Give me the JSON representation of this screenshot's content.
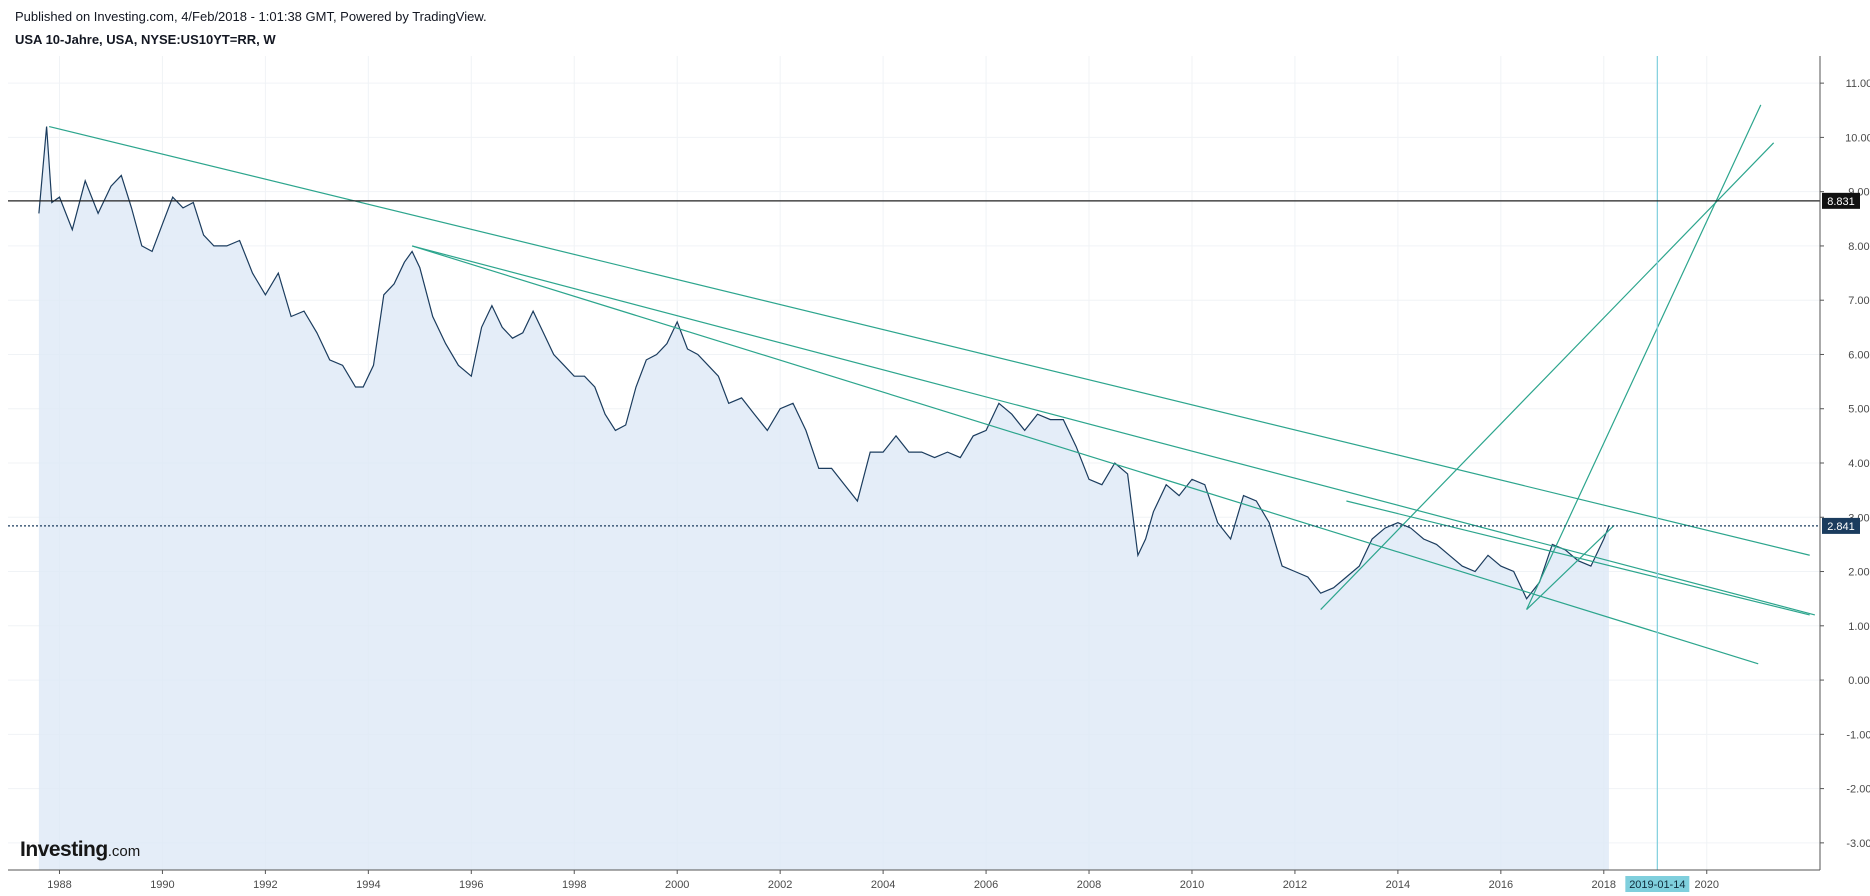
{
  "header": {
    "published": "Published on Investing.com, 4/Feb/2018 - 1:01:38 GMT, Powered by TradingView.",
    "symbol": "USA 10-Jahre, USA, NYSE:US10YT=RR, W"
  },
  "logo": {
    "brand": "Investing",
    "suffix": ".com"
  },
  "chart_data": {
    "type": "area",
    "title": "USA 10-Jahre, USA, NYSE:US10YT=RR, W",
    "x_ticks": [
      "1988",
      "1990",
      "1992",
      "1994",
      "1996",
      "1998",
      "2000",
      "2002",
      "2004",
      "2006",
      "2008",
      "2010",
      "2012",
      "2014",
      "2016",
      "2018",
      "2020"
    ],
    "y_ticks": [
      "11.000",
      "10.000",
      "9.000",
      "8.000",
      "7.000",
      "6.000",
      "5.000",
      "4.000",
      "3.000",
      "2.000",
      "1.000",
      "0.000",
      "-1.000",
      "-2.000",
      "-3.000"
    ],
    "ylim": [
      -3.5,
      11.5
    ],
    "xlim": [
      1987.0,
      2022.2
    ],
    "grid": true,
    "colors": {
      "line": "#1b3c5e",
      "fill": "#dde9f6",
      "trend": "#2ca58d",
      "crosshair": "#7fcfdd",
      "price_label": "#1b3c5e"
    },
    "series": [
      {
        "x": [
          1987.6,
          1987.75,
          1987.85,
          1988.0,
          1988.25,
          1988.5,
          1988.75,
          1989.0,
          1989.2,
          1989.4,
          1989.6,
          1989.8,
          1990.0,
          1990.2,
          1990.4,
          1990.6,
          1990.8,
          1991.0,
          1991.25,
          1991.5,
          1991.75,
          1992.0,
          1992.25,
          1992.5,
          1992.75,
          1993.0,
          1993.25,
          1993.5,
          1993.75,
          1993.9,
          1994.1,
          1994.3,
          1994.5,
          1994.7,
          1994.85,
          1995.0,
          1995.25,
          1995.5,
          1995.75,
          1996.0,
          1996.2,
          1996.4,
          1996.6,
          1996.8,
          1997.0,
          1997.2,
          1997.4,
          1997.6,
          1997.8,
          1998.0,
          1998.2,
          1998.4,
          1998.6,
          1998.8,
          1999.0,
          1999.2,
          1999.4,
          1999.6,
          1999.8,
          2000.0,
          2000.2,
          2000.4,
          2000.6,
          2000.8,
          2001.0,
          2001.25,
          2001.5,
          2001.75,
          2002.0,
          2002.25,
          2002.5,
          2002.75,
          2003.0,
          2003.25,
          2003.5,
          2003.75,
          2004.0,
          2004.25,
          2004.5,
          2004.75,
          2005.0,
          2005.25,
          2005.5,
          2005.75,
          2006.0,
          2006.25,
          2006.5,
          2006.75,
          2007.0,
          2007.25,
          2007.5,
          2007.75,
          2008.0,
          2008.25,
          2008.5,
          2008.75,
          2008.95,
          2009.1,
          2009.25,
          2009.5,
          2009.75,
          2010.0,
          2010.25,
          2010.5,
          2010.75,
          2011.0,
          2011.25,
          2011.5,
          2011.75,
          2012.0,
          2012.25,
          2012.5,
          2012.75,
          2013.0,
          2013.25,
          2013.5,
          2013.75,
          2014.0,
          2014.25,
          2014.5,
          2014.75,
          2015.0,
          2015.25,
          2015.5,
          2015.75,
          2016.0,
          2016.25,
          2016.5,
          2016.75,
          2017.0,
          2017.25,
          2017.5,
          2017.75,
          2018.0,
          2018.1
        ],
        "y": [
          8.6,
          10.2,
          8.8,
          8.9,
          8.3,
          9.2,
          8.6,
          9.1,
          9.3,
          8.7,
          8.0,
          7.9,
          8.4,
          8.9,
          8.7,
          8.8,
          8.2,
          8.0,
          8.0,
          8.1,
          7.5,
          7.1,
          7.5,
          6.7,
          6.8,
          6.4,
          5.9,
          5.8,
          5.4,
          5.4,
          5.8,
          7.1,
          7.3,
          7.7,
          7.9,
          7.6,
          6.7,
          6.2,
          5.8,
          5.6,
          6.5,
          6.9,
          6.5,
          6.3,
          6.4,
          6.8,
          6.4,
          6.0,
          5.8,
          5.6,
          5.6,
          5.4,
          4.9,
          4.6,
          4.7,
          5.4,
          5.9,
          6.0,
          6.2,
          6.6,
          6.1,
          6.0,
          5.8,
          5.6,
          5.1,
          5.2,
          4.9,
          4.6,
          5.0,
          5.1,
          4.6,
          3.9,
          3.9,
          3.6,
          3.3,
          4.2,
          4.2,
          4.5,
          4.2,
          4.2,
          4.1,
          4.2,
          4.1,
          4.5,
          4.6,
          5.1,
          4.9,
          4.6,
          4.9,
          4.8,
          4.8,
          4.3,
          3.7,
          3.6,
          4.0,
          3.8,
          2.3,
          2.6,
          3.1,
          3.6,
          3.4,
          3.7,
          3.6,
          2.9,
          2.6,
          3.4,
          3.3,
          2.9,
          2.1,
          2.0,
          1.9,
          1.6,
          1.7,
          1.9,
          2.1,
          2.6,
          2.8,
          2.9,
          2.8,
          2.6,
          2.5,
          2.3,
          2.1,
          2.0,
          2.3,
          2.1,
          2.0,
          1.5,
          1.8,
          2.5,
          2.4,
          2.2,
          2.1,
          2.6,
          2.84
        ]
      }
    ],
    "trend_lines": [
      {
        "x": [
          1987.8,
          2022.0
        ],
        "y": [
          10.2,
          2.3
        ]
      },
      {
        "x": [
          1994.85,
          2021.0
        ],
        "y": [
          8.0,
          0.3
        ]
      },
      {
        "x": [
          1994.85,
          2022.1
        ],
        "y": [
          8.0,
          1.2
        ]
      },
      {
        "x": [
          2012.5,
          2021.3
        ],
        "y": [
          1.3,
          9.9
        ]
      },
      {
        "x": [
          2016.5,
          2021.05
        ],
        "y": [
          1.3,
          10.6
        ]
      },
      {
        "x": [
          2013.0,
          2022.0
        ],
        "y": [
          3.3,
          1.2
        ]
      },
      {
        "x": [
          2016.5,
          2018.2
        ],
        "y": [
          1.3,
          2.85
        ]
      }
    ],
    "horizontal_lines": [
      {
        "y": 8.831,
        "label": "8.831",
        "style": "solid"
      },
      {
        "y": 2.841,
        "label": "2.841",
        "style": "dotted"
      }
    ],
    "vertical_line": {
      "x": 2019.04,
      "label": "2019-01-14"
    }
  }
}
